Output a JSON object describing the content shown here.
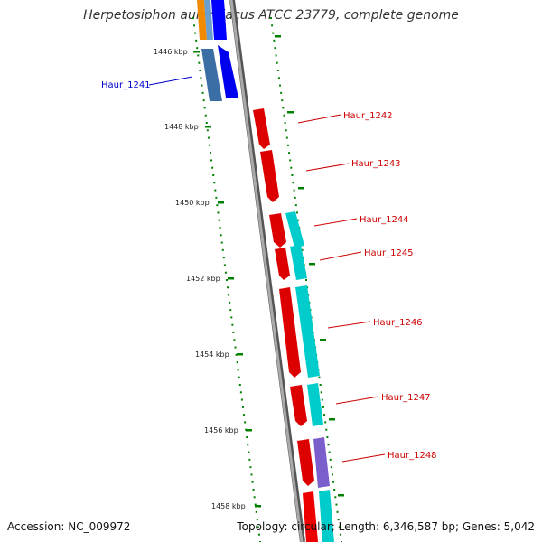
{
  "title": "Herpetosiphon aurantiacus ATCC 23779, complete genome",
  "footer": {
    "accession": "Accession: NC_009972",
    "topology": "Topology: circular; Length: 6,346,587 bp; Genes: 5,042"
  },
  "ticks": [
    "1446 kbp",
    "1448 kbp",
    "1450 kbp",
    "1452 kbp",
    "1454 kbp",
    "1456 kbp",
    "1458 kbp"
  ],
  "genes": [
    {
      "name": "Haur_1241",
      "strand": "forward",
      "color": "#0000cc"
    },
    {
      "name": "Haur_1242",
      "strand": "reverse",
      "color": "#cc0000"
    },
    {
      "name": "Haur_1243",
      "strand": "reverse",
      "color": "#cc0000"
    },
    {
      "name": "Haur_1244",
      "strand": "reverse",
      "color": "#cc0000"
    },
    {
      "name": "Haur_1245",
      "strand": "reverse",
      "color": "#cc0000"
    },
    {
      "name": "Haur_1246",
      "strand": "reverse",
      "color": "#cc0000"
    },
    {
      "name": "Haur_1247",
      "strand": "reverse",
      "color": "#cc0000"
    },
    {
      "name": "Haur_1248",
      "strand": "reverse",
      "color": "#cc0000"
    }
  ],
  "colors": {
    "forward_gene": "#0000ff",
    "forward_cds": "#3a6ea5",
    "reverse_gene": "#ee0000",
    "reverse_cds_cyan": "#00cccc",
    "reverse_cds_purple": "#7a5fcc",
    "orange_feature": "#f08a00",
    "backbone": "#999999",
    "tick_marks": "#008000"
  }
}
